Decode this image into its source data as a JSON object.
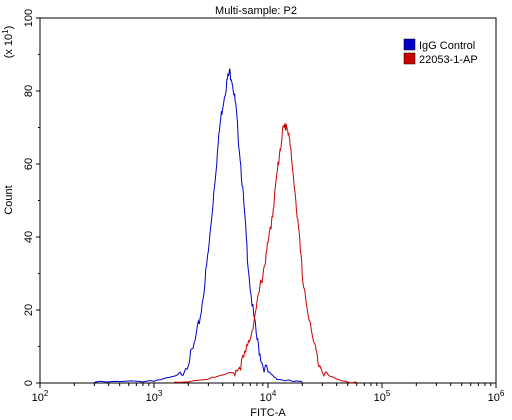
{
  "chart_data": {
    "type": "line",
    "title": "Multi-sample: P2",
    "xlabel": "FITC-A",
    "ylabel": "Count",
    "y_multiplier_base": "(x 10",
    "y_multiplier_exp": "1",
    "y_multiplier_close": ")",
    "x_scale": "log",
    "xlim": [
      100,
      1000000
    ],
    "ylim": [
      0,
      100
    ],
    "x_ticks": [
      {
        "value": 100,
        "base": "10",
        "exp": "2"
      },
      {
        "value": 1000,
        "base": "10",
        "exp": "3"
      },
      {
        "value": 10000,
        "base": "10",
        "exp": "4"
      },
      {
        "value": 100000,
        "base": "10",
        "exp": "5"
      },
      {
        "value": 1000000,
        "base": "10",
        "exp": "6"
      }
    ],
    "y_ticks": [
      "0",
      "20",
      "40",
      "60",
      "80",
      "100"
    ],
    "legend_position": "top-right",
    "series": [
      {
        "name": "IgG Control",
        "color": "#0000cc",
        "points": [
          [
            300,
            0.2
          ],
          [
            500,
            0.3
          ],
          [
            800,
            0.5
          ],
          [
            1000,
            0.7
          ],
          [
            1300,
            1.2
          ],
          [
            1600,
            2
          ],
          [
            1800,
            3.5
          ],
          [
            2000,
            6
          ],
          [
            2200,
            9
          ],
          [
            2400,
            14
          ],
          [
            2600,
            20
          ],
          [
            2800,
            28
          ],
          [
            3000,
            36
          ],
          [
            3200,
            45
          ],
          [
            3400,
            55
          ],
          [
            3600,
            63
          ],
          [
            3800,
            71
          ],
          [
            4000,
            76
          ],
          [
            4200,
            80
          ],
          [
            4400,
            83
          ],
          [
            4600,
            85
          ],
          [
            4800,
            84
          ],
          [
            5000,
            80
          ],
          [
            5200,
            76
          ],
          [
            5400,
            70
          ],
          [
            5700,
            62
          ],
          [
            6000,
            53
          ],
          [
            6300,
            44
          ],
          [
            6600,
            35
          ],
          [
            7000,
            26
          ],
          [
            7500,
            18
          ],
          [
            8000,
            12
          ],
          [
            8500,
            8
          ],
          [
            9000,
            5
          ],
          [
            10000,
            3
          ],
          [
            11000,
            2
          ],
          [
            12000,
            1.2
          ],
          [
            14000,
            0.7
          ],
          [
            17000,
            0.4
          ],
          [
            20000,
            0.2
          ]
        ]
      },
      {
        "name": "22053-1-AP",
        "color": "#cc0000",
        "points": [
          [
            1500,
            0.2
          ],
          [
            2000,
            0.5
          ],
          [
            3000,
            1.2
          ],
          [
            4000,
            2
          ],
          [
            5000,
            3
          ],
          [
            5500,
            4
          ],
          [
            6000,
            6
          ],
          [
            6500,
            9
          ],
          [
            7000,
            13
          ],
          [
            7500,
            17
          ],
          [
            8000,
            21
          ],
          [
            8500,
            26
          ],
          [
            9000,
            30
          ],
          [
            9500,
            34
          ],
          [
            10000,
            38
          ],
          [
            10500,
            42
          ],
          [
            11000,
            47
          ],
          [
            11500,
            52
          ],
          [
            12000,
            57
          ],
          [
            12500,
            62
          ],
          [
            13000,
            66
          ],
          [
            13500,
            69
          ],
          [
            14000,
            70
          ],
          [
            14500,
            71
          ],
          [
            15000,
            69
          ],
          [
            15500,
            66
          ],
          [
            16000,
            62
          ],
          [
            17000,
            55
          ],
          [
            18000,
            46
          ],
          [
            19000,
            38
          ],
          [
            20000,
            30
          ],
          [
            22000,
            21
          ],
          [
            24000,
            14
          ],
          [
            26000,
            9
          ],
          [
            28000,
            6
          ],
          [
            30000,
            4
          ],
          [
            34000,
            2
          ],
          [
            40000,
            1
          ],
          [
            50000,
            0.4
          ],
          [
            60000,
            0.2
          ]
        ]
      }
    ]
  }
}
